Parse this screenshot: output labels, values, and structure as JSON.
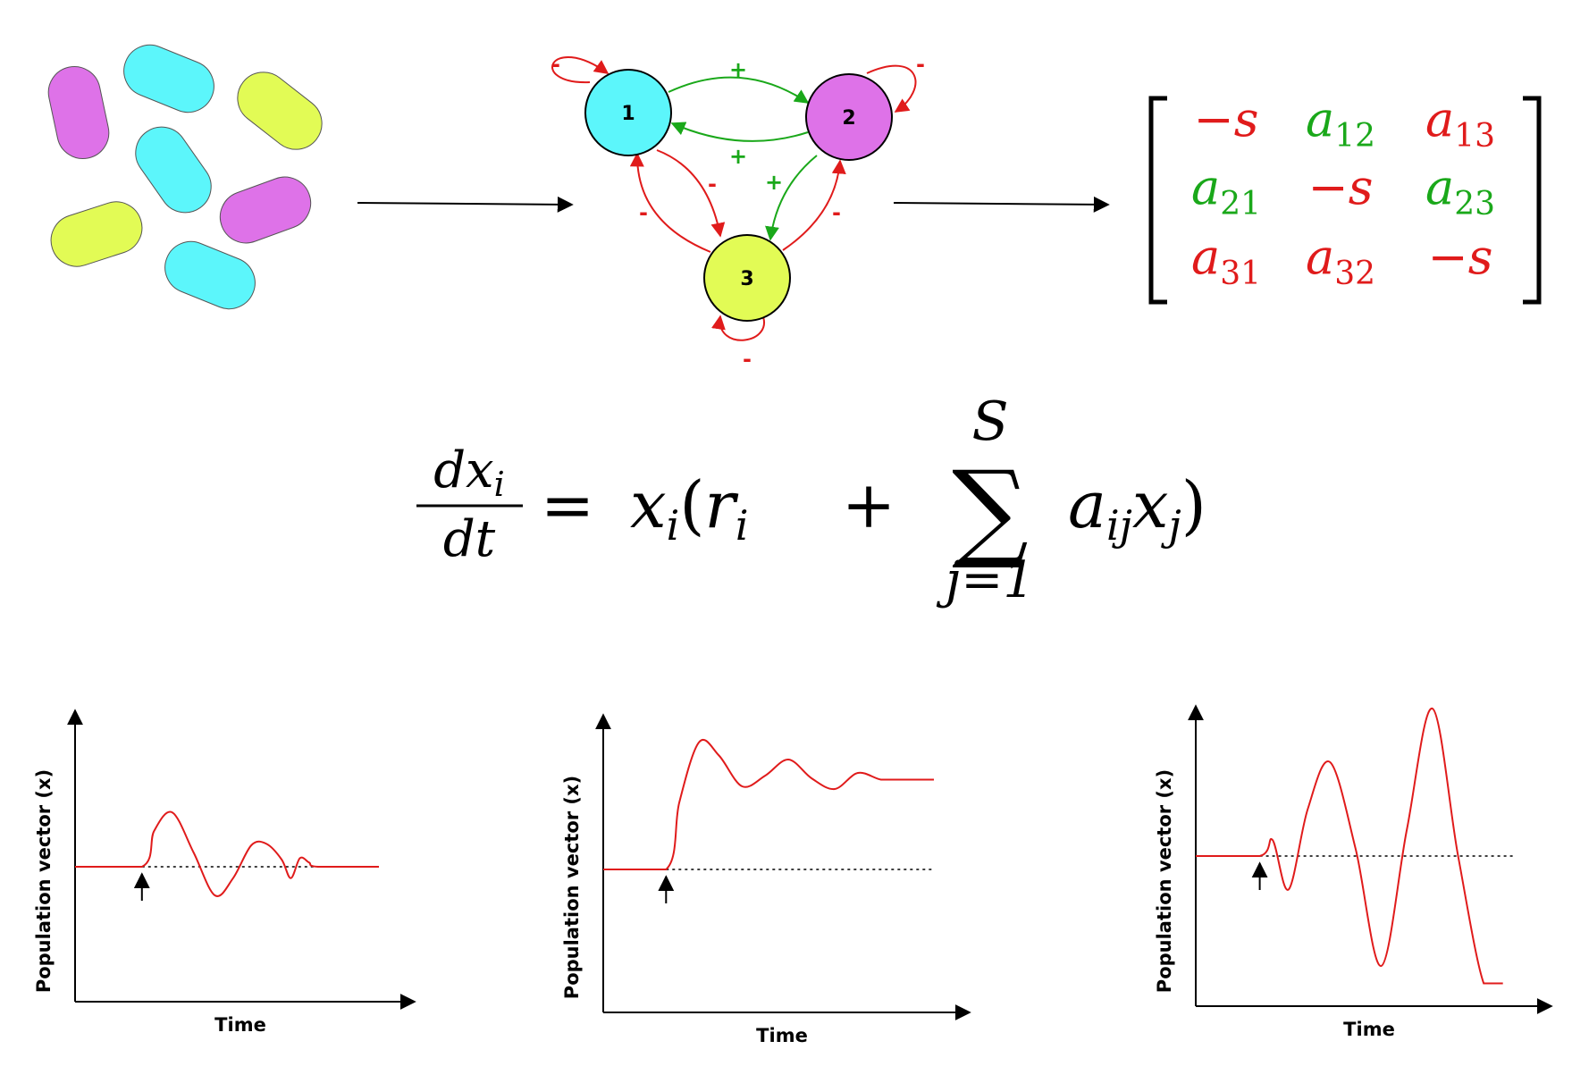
{
  "colors": {
    "cyan": "#5cf6fb",
    "magenta": "#de72e8",
    "yellow": "#e2fb55",
    "red": "#e01b1b",
    "green": "#1aa81a",
    "black": "#000000"
  },
  "microbes": [
    {
      "color": "magenta"
    },
    {
      "color": "cyan"
    },
    {
      "color": "yellow"
    },
    {
      "color": "cyan"
    },
    {
      "color": "yellow"
    },
    {
      "color": "magenta"
    },
    {
      "color": "cyan"
    }
  ],
  "network": {
    "nodes": [
      {
        "id": "1",
        "label": "1",
        "color": "cyan"
      },
      {
        "id": "2",
        "label": "2",
        "color": "magenta"
      },
      {
        "id": "3",
        "label": "3",
        "color": "yellow"
      }
    ],
    "edges": [
      {
        "from": "1",
        "to": "2",
        "sign": "+"
      },
      {
        "from": "2",
        "to": "1",
        "sign": "+"
      },
      {
        "from": "2",
        "to": "3",
        "sign": "+"
      },
      {
        "from": "1",
        "to": "3",
        "sign": "-"
      },
      {
        "from": "3",
        "to": "1",
        "sign": "-"
      },
      {
        "from": "3",
        "to": "2",
        "sign": "-"
      },
      {
        "from": "1",
        "to": "1",
        "sign": "-"
      },
      {
        "from": "2",
        "to": "2",
        "sign": "-"
      },
      {
        "from": "3",
        "to": "3",
        "sign": "-"
      }
    ]
  },
  "matrix": {
    "rows": [
      [
        {
          "base": "−s",
          "sub": "",
          "color": "red"
        },
        {
          "base": "a",
          "sub": "12",
          "color": "green"
        },
        {
          "base": "a",
          "sub": "13",
          "color": "red"
        }
      ],
      [
        {
          "base": "a",
          "sub": "21",
          "color": "green"
        },
        {
          "base": "−s",
          "sub": "",
          "color": "red"
        },
        {
          "base": "a",
          "sub": "23",
          "color": "green"
        }
      ],
      [
        {
          "base": "a",
          "sub": "31",
          "color": "red"
        },
        {
          "base": "a",
          "sub": "32",
          "color": "red"
        },
        {
          "base": "−s",
          "sub": "",
          "color": "red"
        }
      ]
    ]
  },
  "equation": {
    "numerator": "dx",
    "numerator_sub": "i",
    "denominator": "dt",
    "equals": "=",
    "lhs_var": "x",
    "lhs_sub": "i",
    "open_paren": "(",
    "r": "r",
    "r_sub": "i",
    "plus": "+",
    "sum_symbol": "∑",
    "sum_upper": "S",
    "sum_lower": "j=1",
    "a": "a",
    "a_sub": "ij",
    "x": "x",
    "x_sub": "j",
    "close_paren": ")"
  },
  "plots": [
    {
      "type": "line",
      "xlabel": "Time",
      "ylabel": "Population vector (x)",
      "behavior": "damped oscillation returning to baseline",
      "baseline": 0,
      "perturbation_time": 0.22,
      "x": [
        0.0,
        0.22,
        0.26,
        0.32,
        0.39,
        0.46,
        0.52,
        0.58,
        0.63,
        0.68,
        0.71,
        0.74,
        0.77,
        0.8,
        1.0
      ],
      "y": [
        0.0,
        0.0,
        0.25,
        0.38,
        0.1,
        -0.2,
        -0.08,
        0.15,
        0.16,
        0.05,
        -0.08,
        0.06,
        0.03,
        0.0,
        0.0
      ]
    },
    {
      "type": "line",
      "xlabel": "Time",
      "ylabel": "Population vector (x)",
      "behavior": "damped oscillation settling to new steady state",
      "baseline": 0,
      "perturbation_time": 0.19,
      "x": [
        0.0,
        0.19,
        0.23,
        0.29,
        0.35,
        0.42,
        0.49,
        0.56,
        0.63,
        0.7,
        0.77,
        0.84,
        0.9,
        1.0
      ],
      "y": [
        0.0,
        0.0,
        0.5,
        0.95,
        0.85,
        0.62,
        0.7,
        0.82,
        0.68,
        0.6,
        0.72,
        0.67,
        0.67,
        0.67
      ]
    },
    {
      "type": "line",
      "xlabel": "Time",
      "ylabel": "Population vector (x)",
      "behavior": "growing oscillation (unstable)",
      "baseline": 0,
      "perturbation_time": 0.2,
      "x": [
        0.0,
        0.2,
        0.24,
        0.29,
        0.35,
        0.42,
        0.5,
        0.58,
        0.66,
        0.74,
        0.82,
        0.9,
        0.96
      ],
      "y": [
        0.0,
        0.0,
        0.12,
        -0.25,
        0.35,
        0.7,
        0.05,
        -0.82,
        0.2,
        1.1,
        0.0,
        -0.95,
        -0.95
      ]
    }
  ]
}
